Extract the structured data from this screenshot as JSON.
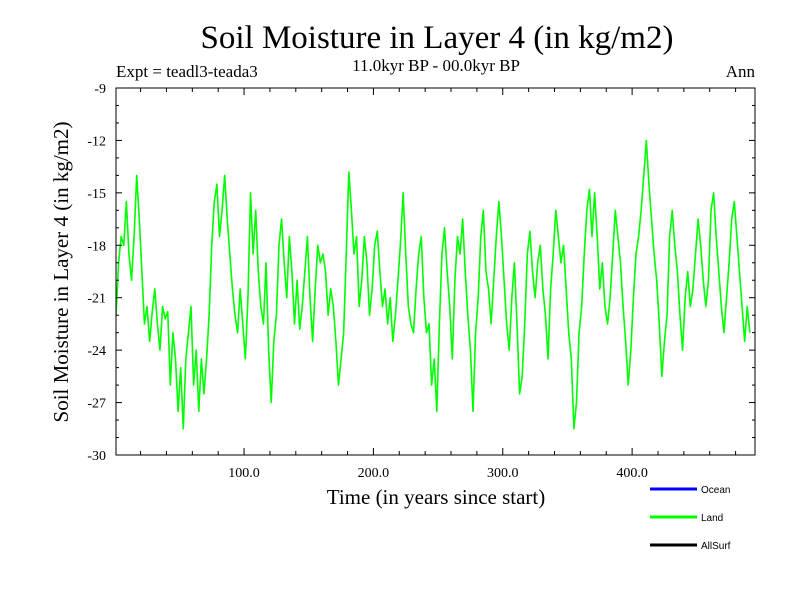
{
  "chart_data": {
    "type": "line",
    "title": "Soil Moisture in Layer 4 (in kg/m2)",
    "subtitle": "11.0kyr BP - 00.0kyr BP",
    "left_label": "Expt = teadl3-teada3",
    "right_label": "Ann",
    "xlabel": "Time (in years since start)",
    "ylabel": "Soil Moisture in Layer 4 (in kg/m2)",
    "xlim": [
      1,
      495
    ],
    "ylim": [
      -30,
      -9
    ],
    "x_ticks": [
      100,
      200,
      300,
      400
    ],
    "x_tick_labels": [
      "100.0",
      "200.0",
      "300.0",
      "400.0"
    ],
    "y_ticks": [
      -30,
      -27,
      -24,
      -21,
      -18,
      -15,
      -12,
      -9
    ],
    "y_tick_labels": [
      "-30",
      "-27",
      "-24",
      "-21",
      "-18",
      "-15",
      "-12",
      "-9"
    ],
    "legend": [
      {
        "name": "Ocean",
        "color": "#0000ff"
      },
      {
        "name": "Land",
        "color": "#00ff00"
      },
      {
        "name": "AllSurf",
        "color": "#000000"
      }
    ],
    "series": [
      {
        "name": "Land",
        "color": "#00ff00",
        "x_start": 1,
        "x_step": 2,
        "values": [
          -22.0,
          -19.0,
          -17.5,
          -18.0,
          -15.5,
          -18.5,
          -20.0,
          -17.5,
          -14.0,
          -16.5,
          -19.5,
          -22.5,
          -21.5,
          -23.5,
          -21.8,
          -20.5,
          -22.5,
          -24.0,
          -21.5,
          -22.2,
          -21.8,
          -26.0,
          -23.0,
          -24.5,
          -27.5,
          -25.0,
          -28.5,
          -24.5,
          -23.0,
          -21.5,
          -26.0,
          -24.0,
          -27.5,
          -24.5,
          -26.5,
          -24.5,
          -22.0,
          -18.0,
          -15.5,
          -14.5,
          -17.5,
          -16.0,
          -14.0,
          -16.5,
          -18.5,
          -20.5,
          -22.0,
          -23.0,
          -20.5,
          -22.5,
          -24.5,
          -21.0,
          -15.0,
          -18.5,
          -16.0,
          -19.5,
          -21.5,
          -22.5,
          -19.0,
          -24.0,
          -27.0,
          -23.5,
          -22.0,
          -18.0,
          -16.5,
          -19.0,
          -21.0,
          -17.5,
          -19.5,
          -22.5,
          -20.0,
          -22.8,
          -21.5,
          -19.5,
          -17.5,
          -21.0,
          -23.5,
          -20.5,
          -18.0,
          -19.0,
          -18.5,
          -19.5,
          -22.0,
          -20.5,
          -21.5,
          -23.5,
          -26.0,
          -24.5,
          -23.0,
          -18.5,
          -13.8,
          -16.0,
          -18.5,
          -17.5,
          -21.5,
          -20.0,
          -17.5,
          -19.0,
          -22.0,
          -20.5,
          -18.0,
          -17.2,
          -19.5,
          -21.5,
          -20.5,
          -22.5,
          -21.0,
          -23.5,
          -22.0,
          -20.0,
          -17.8,
          -15.0,
          -18.5,
          -21.5,
          -22.5,
          -23.0,
          -20.5,
          -18.5,
          -17.5,
          -21.0,
          -23.0,
          -22.5,
          -26.0,
          -24.5,
          -27.5,
          -22.5,
          -18.5,
          -17.0,
          -19.5,
          -21.5,
          -24.5,
          -20.0,
          -17.5,
          -18.5,
          -16.5,
          -19.5,
          -22.0,
          -24.0,
          -27.5,
          -23.0,
          -21.0,
          -17.5,
          -16.0,
          -19.5,
          -20.5,
          -22.5,
          -20.0,
          -17.5,
          -15.5,
          -17.5,
          -20.0,
          -22.5,
          -24.0,
          -21.0,
          -19.0,
          -22.5,
          -26.5,
          -25.5,
          -22.5,
          -18.5,
          -17.2,
          -19.5,
          -21.0,
          -19.0,
          -18.0,
          -20.5,
          -22.0,
          -24.5,
          -20.5,
          -18.5,
          -16.0,
          -17.5,
          -19.0,
          -18.0,
          -20.5,
          -23.0,
          -24.5,
          -28.5,
          -27.0,
          -23.0,
          -21.5,
          -18.5,
          -16.0,
          -14.8,
          -17.5,
          -15.0,
          -17.5,
          -20.5,
          -19.0,
          -21.5,
          -22.5,
          -21.0,
          -18.5,
          -16.0,
          -17.5,
          -19.0,
          -21.5,
          -23.5,
          -26.0,
          -24.0,
          -21.0,
          -18.5,
          -17.5,
          -16.0,
          -14.0,
          -12.0,
          -14.5,
          -16.5,
          -18.5,
          -20.0,
          -22.5,
          -25.5,
          -23.5,
          -22.0,
          -17.5,
          -16.0,
          -18.0,
          -19.5,
          -22.0,
          -24.0,
          -21.0,
          -19.5,
          -21.5,
          -20.5,
          -18.5,
          -16.5,
          -18.0,
          -20.0,
          -21.5,
          -20.0,
          -16.0,
          -15.0,
          -17.5,
          -19.5,
          -21.5,
          -23.0,
          -21.0,
          -19.0,
          -16.5,
          -15.5,
          -17.5,
          -19.5,
          -21.5,
          -23.5,
          -21.5,
          -23.0
        ]
      }
    ]
  }
}
